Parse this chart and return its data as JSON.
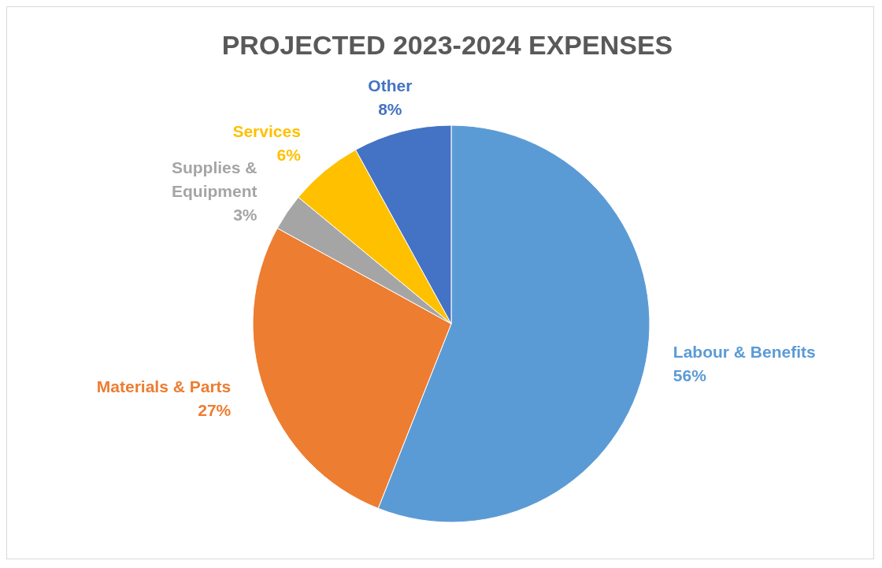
{
  "chart_data": {
    "type": "pie",
    "title": "PROJECTED 2023-2024 EXPENSES",
    "categories": [
      "Labour & Benefits",
      "Materials & Parts",
      "Supplies & Equipment",
      "Services",
      "Other"
    ],
    "values": [
      56,
      27,
      3,
      6,
      8
    ],
    "value_labels": [
      "56%",
      "27%",
      "3%",
      "6%",
      "8%"
    ],
    "colors": [
      "#5b9bd5",
      "#ed7d31",
      "#a5a5a5",
      "#ffc000",
      "#4472c4"
    ],
    "legend": false
  }
}
